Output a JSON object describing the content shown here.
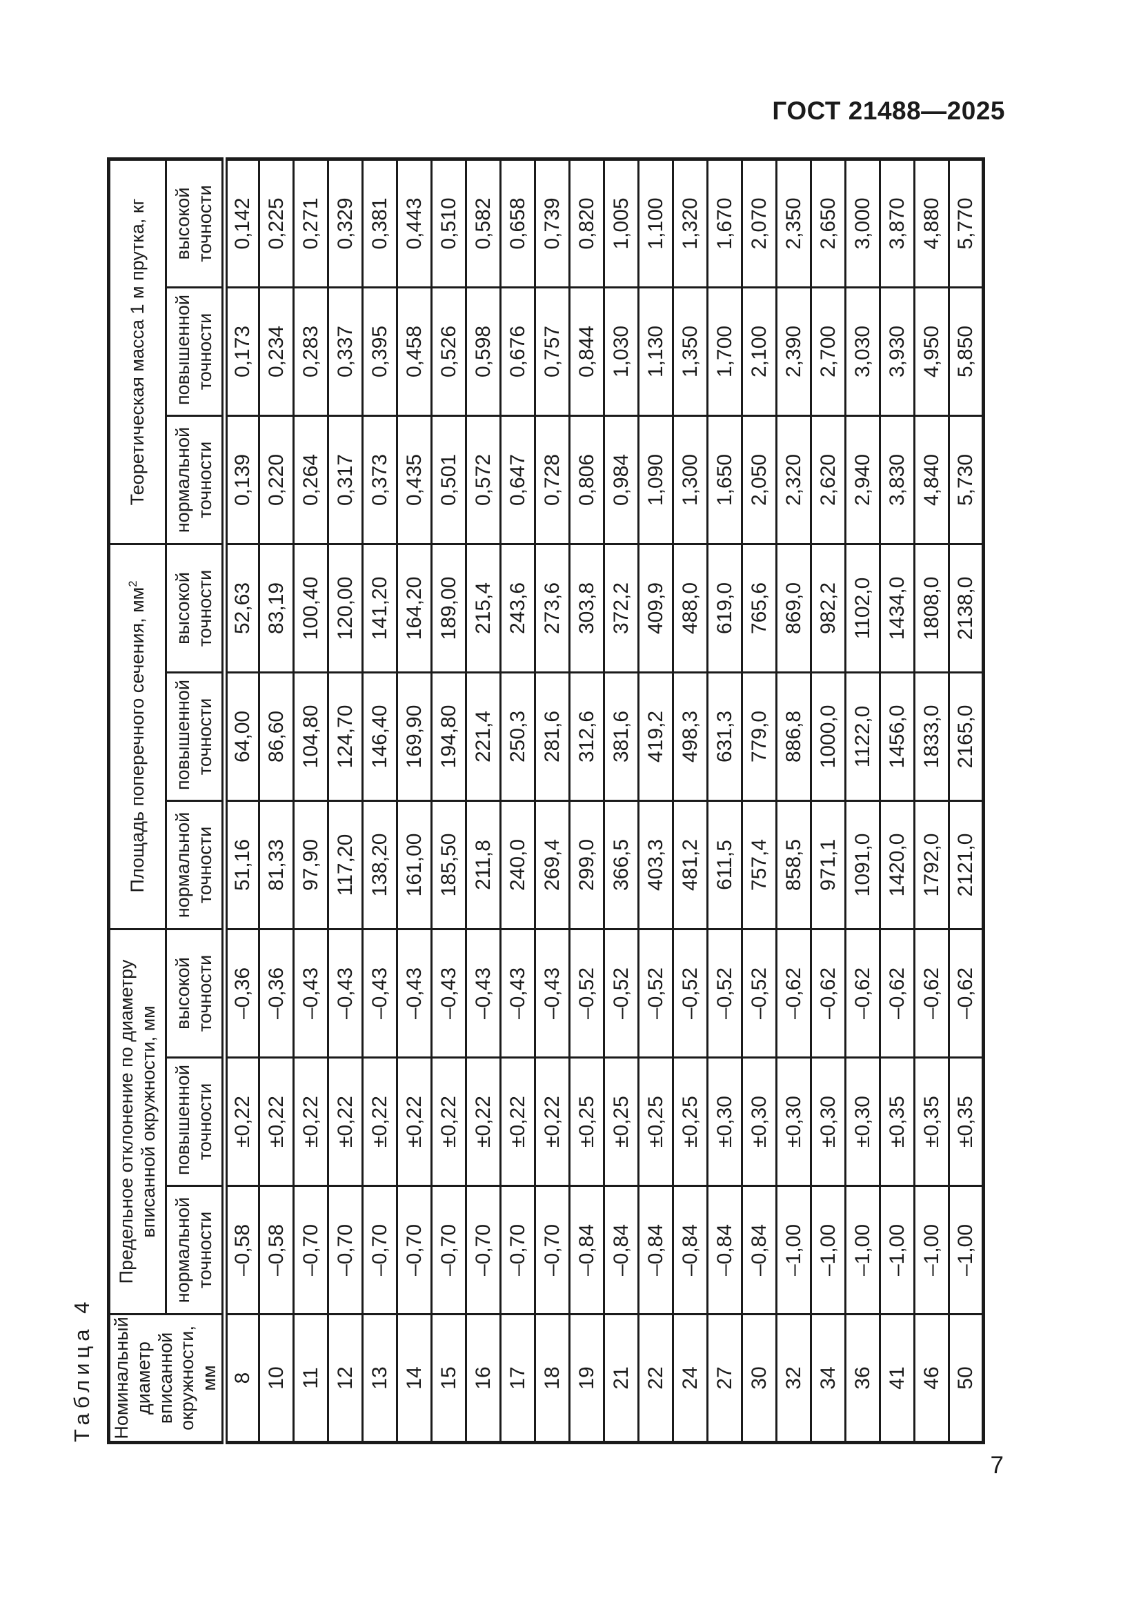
{
  "page": {
    "header_title": "ГОСТ 21488—2025",
    "page_number": "7"
  },
  "table": {
    "caption": "Таблица 4",
    "headers": {
      "diameter": "Номинальный диаметр вписанной окружности, мм",
      "deviation_group": "Предельное отклонение по диаметру вписанной окружности, мм",
      "area_group": "Площадь поперечного сечения, мм",
      "area_group_sup": "2",
      "mass_group": "Теоретическая масса 1 м прутка, кг"
    },
    "sub_headers": [
      "нормальной точности",
      "повышенной точности",
      "высокой точности"
    ],
    "rows": [
      [
        "8",
        "–0,58",
        "±0,22",
        "–0,36",
        "51,16",
        "64,00",
        "52,63",
        "0,139",
        "0,173",
        "0,142"
      ],
      [
        "10",
        "–0,58",
        "±0,22",
        "–0,36",
        "81,33",
        "86,60",
        "83,19",
        "0,220",
        "0,234",
        "0,225"
      ],
      [
        "11",
        "–0,70",
        "±0,22",
        "–0,43",
        "97,90",
        "104,80",
        "100,40",
        "0,264",
        "0,283",
        "0,271"
      ],
      [
        "12",
        "–0,70",
        "±0,22",
        "–0,43",
        "117,20",
        "124,70",
        "120,00",
        "0,317",
        "0,337",
        "0,329"
      ],
      [
        "13",
        "–0,70",
        "±0,22",
        "–0,43",
        "138,20",
        "146,40",
        "141,20",
        "0,373",
        "0,395",
        "0,381"
      ],
      [
        "14",
        "–0,70",
        "±0,22",
        "–0,43",
        "161,00",
        "169,90",
        "164,20",
        "0,435",
        "0,458",
        "0,443"
      ],
      [
        "15",
        "–0,70",
        "±0,22",
        "–0,43",
        "185,50",
        "194,80",
        "189,00",
        "0,501",
        "0,526",
        "0,510"
      ],
      [
        "16",
        "–0,70",
        "±0,22",
        "–0,43",
        "211,8",
        "221,4",
        "215,4",
        "0,572",
        "0,598",
        "0,582"
      ],
      [
        "17",
        "–0,70",
        "±0,22",
        "–0,43",
        "240,0",
        "250,3",
        "243,6",
        "0,647",
        "0,676",
        "0,658"
      ],
      [
        "18",
        "–0,70",
        "±0,22",
        "–0,43",
        "269,4",
        "281,6",
        "273,6",
        "0,728",
        "0,757",
        "0,739"
      ],
      [
        "19",
        "–0,84",
        "±0,25",
        "–0,52",
        "299,0",
        "312,6",
        "303,8",
        "0,806",
        "0,844",
        "0,820"
      ],
      [
        "21",
        "–0,84",
        "±0,25",
        "–0,52",
        "366,5",
        "381,6",
        "372,2",
        "0,984",
        "1,030",
        "1,005"
      ],
      [
        "22",
        "–0,84",
        "±0,25",
        "–0,52",
        "403,3",
        "419,2",
        "409,9",
        "1,090",
        "1,130",
        "1,100"
      ],
      [
        "24",
        "–0,84",
        "±0,25",
        "–0,52",
        "481,2",
        "498,3",
        "488,0",
        "1,300",
        "1,350",
        "1,320"
      ],
      [
        "27",
        "–0,84",
        "±0,30",
        "–0,52",
        "611,5",
        "631,3",
        "619,0",
        "1,650",
        "1,700",
        "1,670"
      ],
      [
        "30",
        "–0,84",
        "±0,30",
        "–0,52",
        "757,4",
        "779,0",
        "765,6",
        "2,050",
        "2,100",
        "2,070"
      ],
      [
        "32",
        "–1,00",
        "±0,30",
        "–0,62",
        "858,5",
        "886,8",
        "869,0",
        "2,320",
        "2,390",
        "2,350"
      ],
      [
        "34",
        "–1,00",
        "±0,30",
        "–0,62",
        "971,1",
        "1000,0",
        "982,2",
        "2,620",
        "2,700",
        "2,650"
      ],
      [
        "36",
        "–1,00",
        "±0,30",
        "–0,62",
        "1091,0",
        "1122,0",
        "1102,0",
        "2,940",
        "3,030",
        "3,000"
      ],
      [
        "41",
        "–1,00",
        "±0,35",
        "–0,62",
        "1420,0",
        "1456,0",
        "1434,0",
        "3,830",
        "3,930",
        "3,870"
      ],
      [
        "46",
        "–1,00",
        "±0,35",
        "–0,62",
        "1792,0",
        "1833,0",
        "1808,0",
        "4,840",
        "4,950",
        "4,880"
      ],
      [
        "50",
        "–1,00",
        "±0,35",
        "–0,62",
        "2121,0",
        "2165,0",
        "2138,0",
        "5,730",
        "5,850",
        "5,770"
      ]
    ]
  }
}
